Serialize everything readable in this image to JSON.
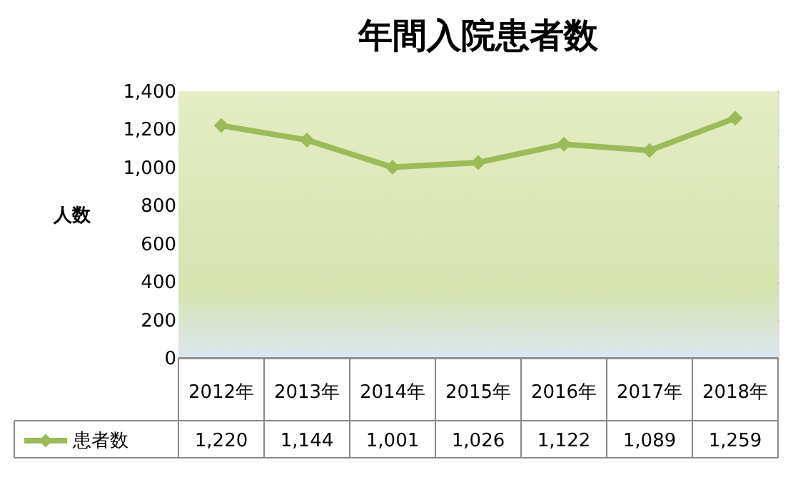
{
  "chart_data": {
    "type": "line",
    "title": "年間入院患者数",
    "ylabel": "人数",
    "categories": [
      "2012年",
      "2013年",
      "2014年",
      "2015年",
      "2016年",
      "2017年",
      "2018年"
    ],
    "series": [
      {
        "name": "患者数",
        "color": "#9bbb59",
        "values": [
          1220,
          1144,
          1001,
          1026,
          1122,
          1089,
          1259
        ],
        "value_labels": [
          "1,220",
          "1,144",
          "1,001",
          "1,026",
          "1,122",
          "1,089",
          "1,259"
        ]
      }
    ],
    "ylim": [
      0,
      1400
    ],
    "yticks": [
      {
        "value": 0,
        "label": "0"
      },
      {
        "value": 200,
        "label": "200"
      },
      {
        "value": 400,
        "label": "400"
      },
      {
        "value": 600,
        "label": "600"
      },
      {
        "value": 800,
        "label": "800"
      },
      {
        "value": 1000,
        "label": "1,000"
      },
      {
        "value": 1200,
        "label": "1,200"
      },
      {
        "value": 1400,
        "label": "1,400"
      }
    ],
    "grid": "y",
    "marker": "diamond",
    "line_style": "solid",
    "legend": "bottom"
  }
}
